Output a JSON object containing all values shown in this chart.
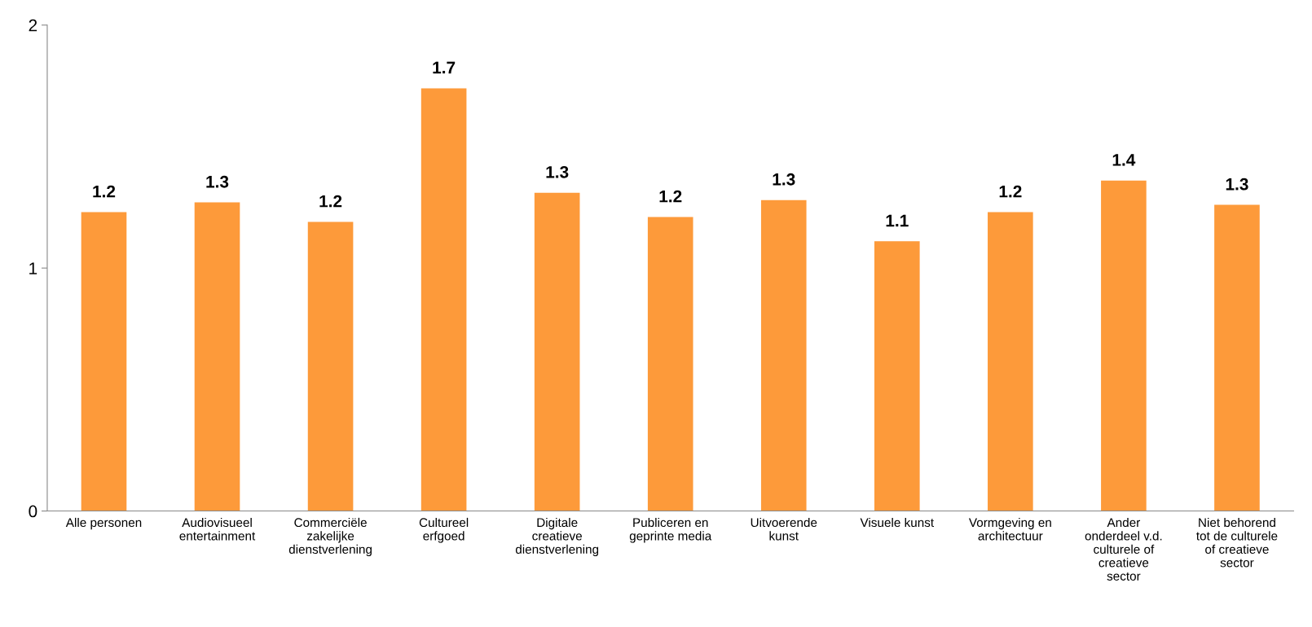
{
  "chart_data": {
    "type": "bar",
    "categories": [
      "Alle personen",
      "Audiovisueel\nentertainment",
      "Commerciële\nzakelijke\ndienstverlening",
      "Cultureel\nerfgoed",
      "Digitale\ncreatieve\ndienstverlening",
      "Publiceren en\ngeprinte media",
      "Uitvoerende\nkunst",
      "Visuele kunst",
      "Vormgeving en\narchitectuur",
      "Ander\nonderdeel v.d.\nculturele of\ncreatieve\nsector",
      "Niet behorend\ntot de culturele\nof creatieve\nsector"
    ],
    "values": [
      1.23,
      1.27,
      1.19,
      1.74,
      1.31,
      1.21,
      1.28,
      1.11,
      1.23,
      1.36,
      1.26
    ],
    "value_labels": [
      "1.2",
      "1.3",
      "1.2",
      "1.7",
      "1.3",
      "1.2",
      "1.3",
      "1.1",
      "1.2",
      "1.4",
      "1.3"
    ],
    "color": "#fd9a3a",
    "ylim": [
      0,
      2
    ],
    "yticks": [
      0,
      1,
      2
    ],
    "grid": false
  }
}
